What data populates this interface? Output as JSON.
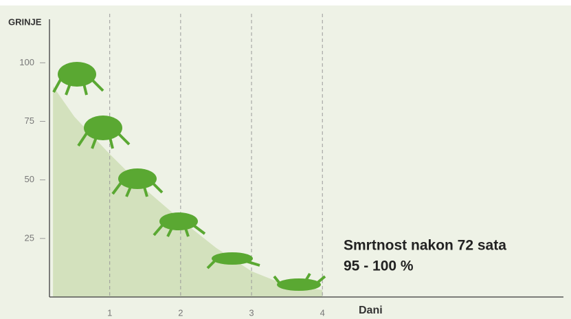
{
  "chart_data": {
    "type": "area",
    "y_label": "GRINJE",
    "x_label": "Dani",
    "x": [
      0.2,
      0.5,
      1,
      1.5,
      2,
      2.5,
      3,
      3.5,
      4
    ],
    "values": [
      90,
      77,
      61,
      46,
      33,
      21,
      11,
      5,
      3
    ],
    "color": "#d3e1bd",
    "xlim": [
      0.15,
      7.4
    ],
    "xticks": [
      1,
      2,
      3,
      4
    ],
    "ylim": [
      0,
      118
    ],
    "yticks": [
      25,
      50,
      75,
      100
    ],
    "grid": true,
    "annotations": [
      "Smrtnost nakon 72 sata",
      "95 - 100 %"
    ]
  }
}
